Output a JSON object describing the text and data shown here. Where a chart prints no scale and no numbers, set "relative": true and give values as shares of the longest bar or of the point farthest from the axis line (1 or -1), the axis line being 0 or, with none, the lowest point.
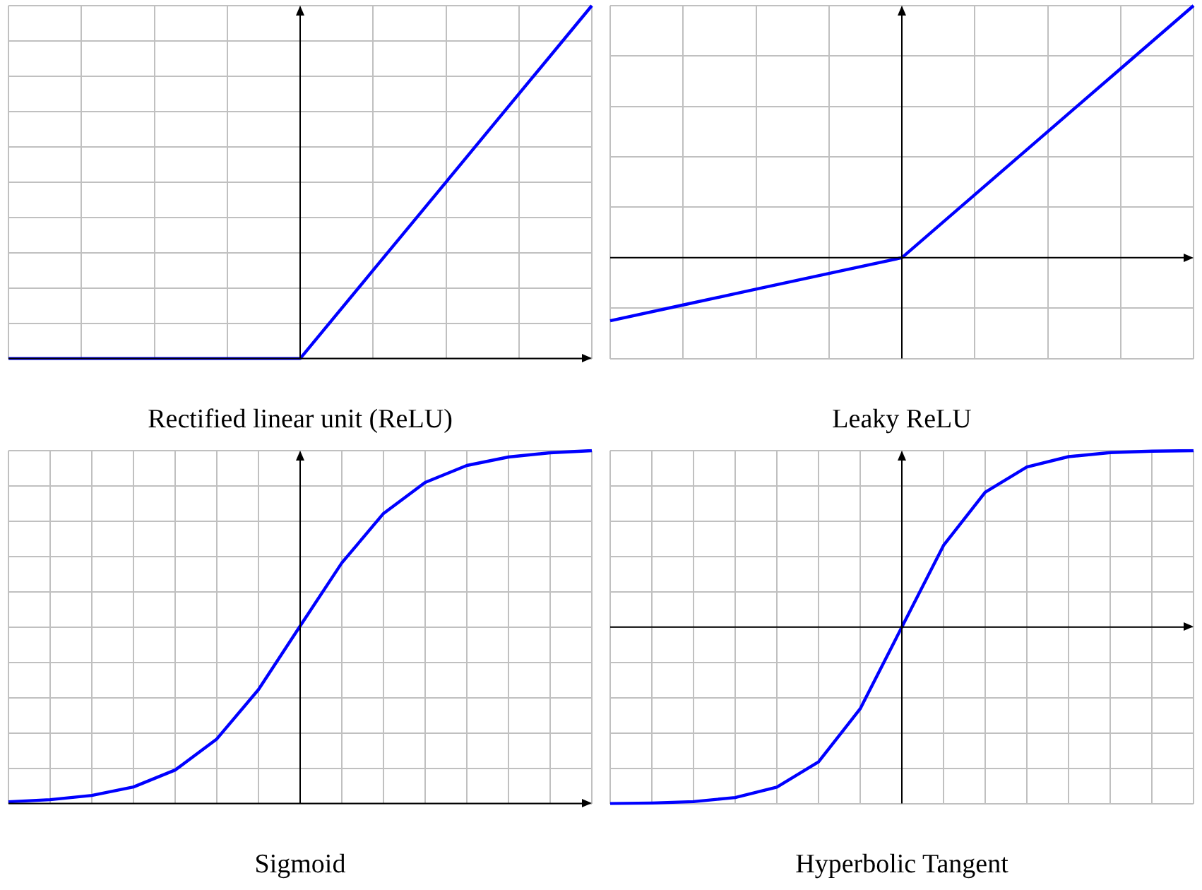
{
  "chart_data": [
    {
      "type": "line",
      "title": "Rectified linear unit (ReLU)",
      "relative": true,
      "grid": true,
      "legend": false,
      "marker": "none",
      "categories": [
        null,
        null,
        null,
        null,
        null,
        null,
        null,
        null,
        null
      ],
      "series": [
        {
          "color": "#0000ff",
          "values": [
            0,
            0,
            0,
            0,
            0,
            0.25,
            0.5,
            0.75,
            1
          ]
        }
      ]
    },
    {
      "type": "line",
      "title": "Leaky ReLU",
      "relative": true,
      "grid": true,
      "legend": false,
      "marker": "none",
      "categories": [
        null,
        null,
        null,
        null,
        null,
        null,
        null,
        null,
        null
      ],
      "series": [
        {
          "color": "#0000ff",
          "values": [
            -0.25,
            -0.1875,
            -0.125,
            -0.0625,
            0,
            0.25,
            0.5,
            0.75,
            1
          ]
        }
      ]
    },
    {
      "type": "line",
      "title": "Sigmoid",
      "relative": true,
      "grid": true,
      "legend": false,
      "marker": "none",
      "categories": [
        null,
        null,
        null,
        null,
        null,
        null,
        null,
        null,
        null,
        null,
        null,
        null,
        null,
        null,
        null
      ],
      "series": [
        {
          "color": "#0000ff",
          "values": [
            0.005,
            0.011,
            0.023,
            0.047,
            0.095,
            0.183,
            0.323,
            0.503,
            0.682,
            0.822,
            0.91,
            0.958,
            0.982,
            0.994,
            1
          ]
        }
      ]
    },
    {
      "type": "line",
      "title": "Hyperbolic Tangent",
      "relative": true,
      "grid": true,
      "legend": false,
      "marker": "none",
      "categories": [
        null,
        null,
        null,
        null,
        null,
        null,
        null,
        null,
        null,
        null,
        null,
        null,
        null,
        null,
        null
      ],
      "series": [
        {
          "color": "#0000ff",
          "values": [
            -1,
            -0.997,
            -0.989,
            -0.966,
            -0.907,
            -0.764,
            -0.463,
            0,
            0.463,
            0.764,
            0.907,
            0.966,
            0.989,
            0.997,
            1
          ]
        }
      ]
    }
  ]
}
